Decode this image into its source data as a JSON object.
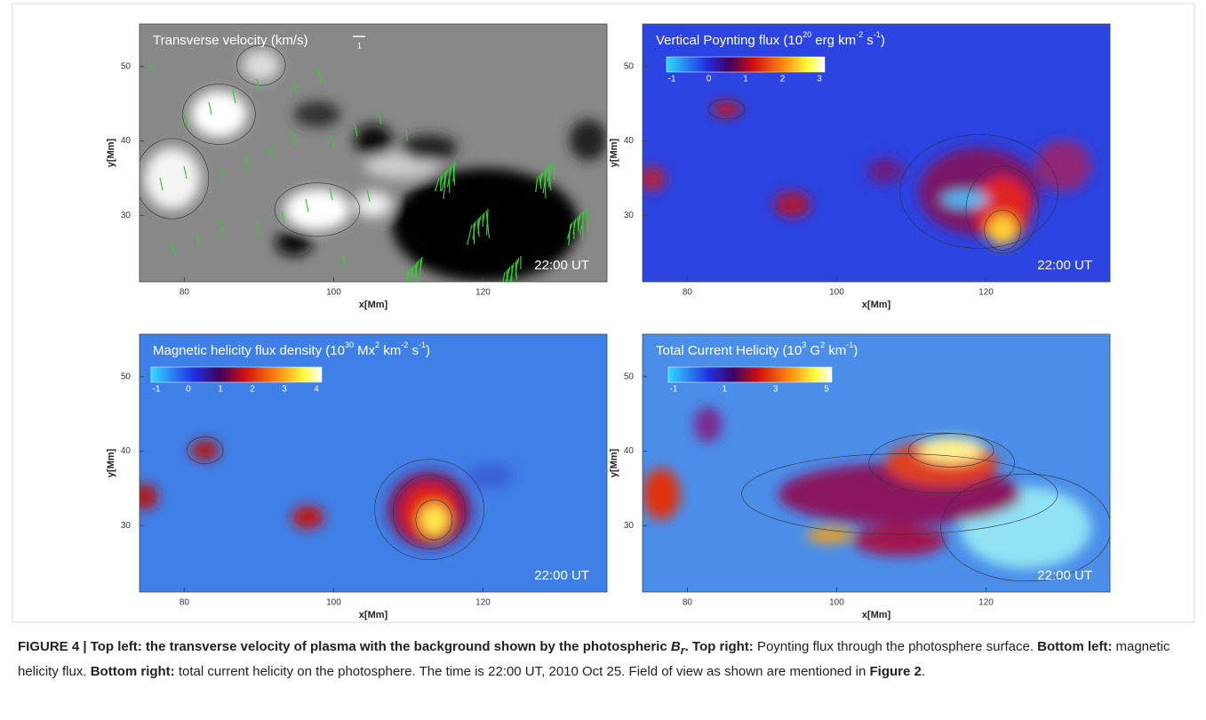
{
  "panels": [
    {
      "title": [
        "Transverse velocity (km/s)"
      ],
      "arrow_label": 1,
      "time": "22:00 UT",
      "xticks": [
        80,
        100,
        120
      ],
      "yticks": [
        50,
        40,
        30
      ],
      "xlabel": "x[Mm]",
      "ylabel": "y[Mm]"
    },
    {
      "title": [
        "Vertical Poynting flux (10",
        "20",
        " erg km",
        "-2",
        " s",
        "-1",
        ")"
      ],
      "colorbar": [
        -1,
        0,
        1,
        2,
        3
      ],
      "time": "22:00 UT",
      "xticks": [
        80,
        100,
        120
      ],
      "yticks": [
        50,
        40,
        30
      ],
      "xlabel": "x[Mm]",
      "ylabel": "y[Mm]"
    },
    {
      "title": [
        "Magnetic helicity flux density (10",
        "30",
        " Mx",
        "2",
        " km",
        "-2",
        " s",
        "-1",
        ")"
      ],
      "colorbar": [
        -1,
        0,
        1,
        2,
        3,
        4
      ],
      "time": "22:00 UT",
      "xticks": [
        80,
        100,
        120
      ],
      "yticks": [
        50,
        40,
        30
      ],
      "xlabel": "x[Mm]",
      "ylabel": "y[Mm]"
    },
    {
      "title": [
        "Total Current Helicity (10",
        "3",
        " G",
        "2",
        " km",
        "-1",
        ")"
      ],
      "colorbar": [
        -1,
        1,
        3,
        5
      ],
      "time": "22:00 UT",
      "xticks": [
        80,
        100,
        120
      ],
      "yticks": [
        50,
        40,
        30
      ],
      "xlabel": "x[Mm]",
      "ylabel": "y[Mm]"
    }
  ],
  "caption": [
    "FIGURE 4 | Top left: the transverse velocity of plasma with the background shown by the photospheric ",
    "B",
    "r",
    ".",
    " Top right:",
    " Poynting flux through the photosphere surface. ",
    "Bottom left:",
    " magnetic helicity flux. ",
    "Bottom right:",
    " total current helicity on the photosphere. The time is 22:00 UT, 2010 Oct 25. Field of view as shown are mentioned in ",
    "Figure 2",
    "."
  ]
}
